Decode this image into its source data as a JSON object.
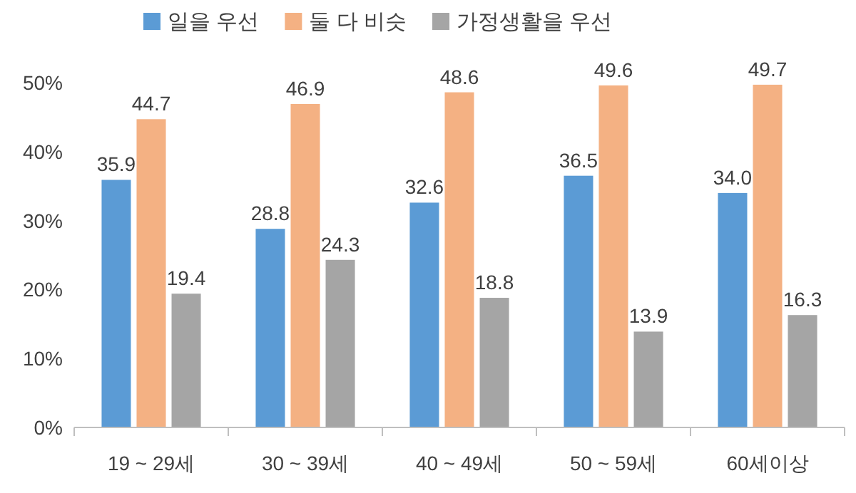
{
  "chart_data": {
    "type": "bar",
    "categories": [
      "19 ~ 29세",
      "30 ~ 39세",
      "40 ~ 49세",
      "50 ~ 59세",
      "60세이상"
    ],
    "series": [
      {
        "name": "일을 우선",
        "color": "#5b9bd5",
        "values": [
          35.9,
          28.8,
          32.6,
          36.5,
          34.0
        ],
        "value_labels": [
          "35.9",
          "28.8",
          "32.6",
          "36.5",
          "34.0"
        ]
      },
      {
        "name": "둘 다 비슷",
        "color": "#f4b183",
        "values": [
          44.7,
          46.9,
          48.6,
          49.6,
          49.7
        ],
        "value_labels": [
          "44.7",
          "46.9",
          "48.6",
          "49.6",
          "49.7"
        ]
      },
      {
        "name": "가정생활을 우선",
        "color": "#a5a5a5",
        "values": [
          19.4,
          24.3,
          18.8,
          13.9,
          16.3
        ],
        "value_labels": [
          "19.4",
          "24.3",
          "18.8",
          "13.9",
          "16.3"
        ]
      }
    ],
    "ylim": [
      0,
      50
    ],
    "yticks": [
      {
        "value": 0,
        "label": "0%"
      },
      {
        "value": 10,
        "label": "10%"
      },
      {
        "value": 20,
        "label": "20%"
      },
      {
        "value": 30,
        "label": "30%"
      },
      {
        "value": 40,
        "label": "40%"
      },
      {
        "value": 50,
        "label": "50%"
      }
    ],
    "legend": "top",
    "grid": false
  }
}
